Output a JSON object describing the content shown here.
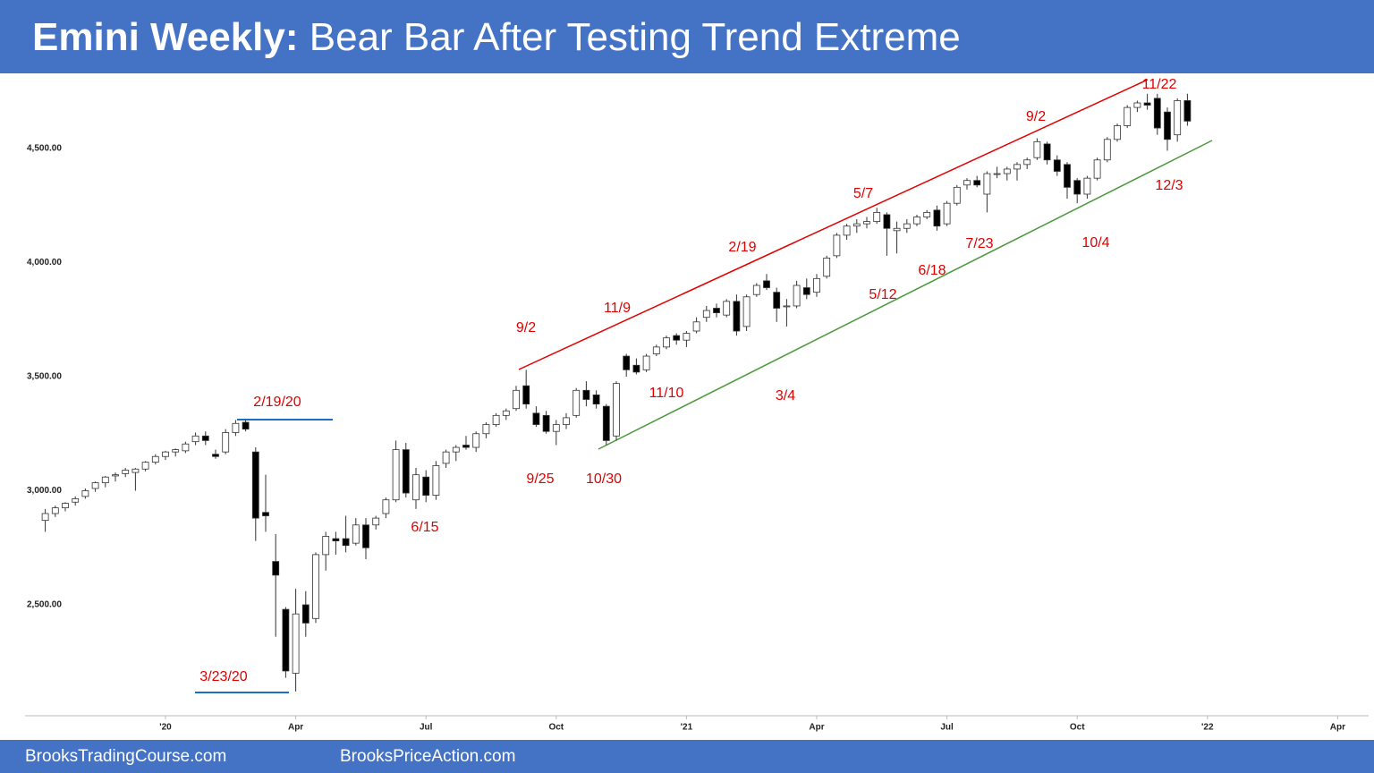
{
  "chart_data": {
    "type": "candlestick",
    "title": {
      "lead": "Emini Weekly:",
      "text": "Bear Bar After Testing Trend Extreme"
    },
    "footer": [
      "BrooksTradingCourse.com",
      "BrooksPriceAction.com"
    ],
    "up_color": "#ffffff",
    "down_color": "#000000",
    "ylim": [
      2000,
      4800
    ],
    "yticks": [
      {
        "value": 2500,
        "label": "2,500.00"
      },
      {
        "value": 3000,
        "label": "3,000.00"
      },
      {
        "value": 3500,
        "label": "3,500.00"
      },
      {
        "value": 4000,
        "label": "4,000.00"
      },
      {
        "value": 4500,
        "label": "4,500.00"
      }
    ],
    "xlim": [
      -14,
      120
    ],
    "xticks": [
      {
        "value": 0,
        "label": "'20"
      },
      {
        "value": 13,
        "label": "Apr"
      },
      {
        "value": 26,
        "label": "Jul"
      },
      {
        "value": 39,
        "label": "Oct"
      },
      {
        "value": 52,
        "label": "'21"
      },
      {
        "value": 65,
        "label": "Apr"
      },
      {
        "value": 78,
        "label": "Jul"
      },
      {
        "value": 91,
        "label": "Oct"
      },
      {
        "value": 104,
        "label": "'22"
      },
      {
        "value": 117,
        "label": "Apr"
      }
    ],
    "x": [
      -12,
      -11,
      -10,
      -9,
      -8,
      -7,
      -6,
      -5,
      -4,
      -3,
      -2,
      -1,
      0,
      1,
      2,
      3,
      4,
      5,
      6,
      7,
      8,
      9,
      10,
      11,
      12,
      13,
      14,
      15,
      16,
      17,
      18,
      19,
      20,
      21,
      22,
      23,
      24,
      25,
      26,
      27,
      28,
      29,
      30,
      31,
      32,
      33,
      34,
      35,
      36,
      37,
      38,
      39,
      40,
      41,
      42,
      43,
      44,
      45,
      46,
      47,
      48,
      49,
      50,
      51,
      52,
      53,
      54,
      55,
      56,
      57,
      58,
      59,
      60,
      61,
      62,
      63,
      64,
      65,
      66,
      67,
      68,
      69,
      70,
      71,
      72,
      73,
      74,
      75,
      76,
      77,
      78,
      79,
      80,
      81,
      82,
      83,
      84,
      85,
      86,
      87,
      88,
      89,
      90,
      91,
      92,
      93,
      94,
      95,
      96,
      97,
      98,
      99,
      100,
      101,
      102
    ],
    "open": [
      2870,
      2900,
      2925,
      2950,
      2975,
      3010,
      3035,
      3065,
      3075,
      3080,
      3095,
      3125,
      3150,
      3170,
      3175,
      3215,
      3240,
      3160,
      3170,
      3255,
      3300,
      3170,
      2905,
      2690,
      2480,
      2200,
      2500,
      2440,
      2720,
      2790,
      2790,
      2770,
      2850,
      2850,
      2900,
      2960,
      3180,
      2960,
      3060,
      2980,
      3120,
      3170,
      3200,
      3190,
      3250,
      3290,
      3330,
      3360,
      3460,
      3340,
      3330,
      3260,
      3290,
      3330,
      3440,
      3420,
      3370,
      3240,
      3590,
      3550,
      3530,
      3600,
      3630,
      3680,
      3660,
      3700,
      3760,
      3800,
      3770,
      3830,
      3720,
      3860,
      3920,
      3870,
      3810,
      3810,
      3890,
      3870,
      3940,
      4030,
      4120,
      4160,
      4170,
      4180,
      4210,
      4140,
      4150,
      4170,
      4200,
      4230,
      4170,
      4260,
      4340,
      4360,
      4300,
      4390,
      4390,
      4410,
      4430,
      4460,
      4520,
      4450,
      4430,
      4360,
      4300,
      4370,
      4450,
      4540,
      4600,
      4680,
      4700,
      4720,
      4660,
      4560,
      4710
    ],
    "high": [
      2920,
      2935,
      2950,
      2975,
      3010,
      3040,
      3065,
      3080,
      3100,
      3100,
      3130,
      3160,
      3175,
      3185,
      3215,
      3255,
      3260,
      3180,
      3270,
      3310,
      3310,
      3190,
      3070,
      2810,
      2490,
      2570,
      2560,
      2730,
      2820,
      2820,
      2890,
      2880,
      2880,
      2890,
      2970,
      3220,
      3210,
      3100,
      3090,
      3130,
      3180,
      3200,
      3240,
      3260,
      3300,
      3340,
      3360,
      3460,
      3530,
      3370,
      3350,
      3310,
      3340,
      3450,
      3480,
      3440,
      3380,
      3480,
      3600,
      3580,
      3600,
      3640,
      3680,
      3690,
      3700,
      3760,
      3810,
      3820,
      3840,
      3860,
      3860,
      3910,
      3950,
      3890,
      3840,
      3920,
      3930,
      3950,
      4030,
      4130,
      4170,
      4190,
      4200,
      4240,
      4220,
      4180,
      4190,
      4210,
      4230,
      4250,
      4270,
      4340,
      4370,
      4380,
      4400,
      4420,
      4420,
      4440,
      4460,
      4545,
      4530,
      4470,
      4440,
      4370,
      4380,
      4460,
      4550,
      4610,
      4690,
      4710,
      4740,
      4740,
      4680,
      4720,
      4740
    ],
    "low": [
      2820,
      2885,
      2910,
      2935,
      2965,
      2995,
      3015,
      3040,
      3060,
      3000,
      3085,
      3115,
      3135,
      3150,
      3165,
      3200,
      3200,
      3140,
      3160,
      3240,
      3260,
      2780,
      2820,
      2360,
      2180,
      2120,
      2360,
      2420,
      2650,
      2720,
      2730,
      2760,
      2700,
      2830,
      2880,
      2950,
      2970,
      2920,
      2950,
      2960,
      3100,
      3130,
      3180,
      3170,
      3230,
      3280,
      3310,
      3350,
      3360,
      3280,
      3250,
      3200,
      3270,
      3320,
      3370,
      3360,
      3200,
      3220,
      3500,
      3510,
      3520,
      3590,
      3620,
      3640,
      3630,
      3690,
      3740,
      3760,
      3760,
      3680,
      3700,
      3850,
      3880,
      3740,
      3720,
      3800,
      3840,
      3850,
      3930,
      4020,
      4100,
      4130,
      4150,
      4170,
      4030,
      4040,
      4130,
      4160,
      4190,
      4140,
      4160,
      4250,
      4320,
      4330,
      4220,
      4370,
      4360,
      4360,
      4410,
      4450,
      4430,
      4380,
      4280,
      4260,
      4280,
      4360,
      4440,
      4530,
      4590,
      4660,
      4670,
      4560,
      4490,
      4530,
      4600
    ],
    "close": [
      2900,
      2925,
      2945,
      2965,
      3000,
      3035,
      3060,
      3070,
      3090,
      3095,
      3125,
      3150,
      3170,
      3180,
      3205,
      3240,
      3220,
      3150,
      3255,
      3295,
      3270,
      2880,
      2890,
      2630,
      2210,
      2460,
      2420,
      2720,
      2800,
      2780,
      2760,
      2850,
      2750,
      2880,
      2960,
      3180,
      2990,
      3070,
      2980,
      3110,
      3170,
      3190,
      3190,
      3250,
      3290,
      3330,
      3350,
      3440,
      3380,
      3290,
      3260,
      3290,
      3320,
      3440,
      3400,
      3380,
      3220,
      3470,
      3530,
      3520,
      3590,
      3630,
      3670,
      3660,
      3690,
      3740,
      3790,
      3780,
      3830,
      3700,
      3850,
      3900,
      3890,
      3800,
      3810,
      3900,
      3860,
      3930,
      4020,
      4120,
      4160,
      4170,
      4180,
      4220,
      4150,
      4150,
      4170,
      4200,
      4220,
      4160,
      4260,
      4330,
      4360,
      4340,
      4390,
      4390,
      4410,
      4430,
      4450,
      4530,
      4450,
      4400,
      4330,
      4300,
      4370,
      4450,
      4540,
      4600,
      4680,
      4700,
      4690,
      4590,
      4540,
      4710,
      4620
    ],
    "annotations": [
      "2/19/20",
      "3/23/20",
      "6/15",
      "9/2",
      "9/25",
      "10/30",
      "11/9",
      "11/10",
      "3/4",
      "2/19",
      "5/7",
      "5/12",
      "6/18",
      "7/23",
      "9/2",
      "10/4",
      "11/22",
      "12/3"
    ]
  }
}
